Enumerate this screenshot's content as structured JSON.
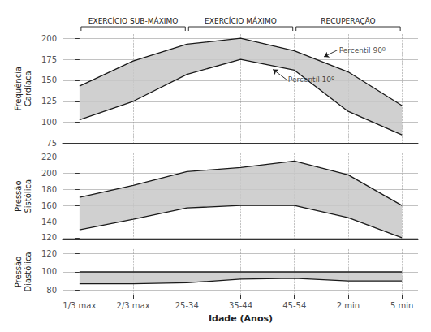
{
  "chart_data": [
    {
      "type": "band",
      "ylabel": "Frequência\nCardíaca",
      "x": [
        0,
        1,
        2,
        3,
        4,
        5,
        6
      ],
      "series": [
        {
          "color": "#1a1a1a",
          "values": [
            143,
            173,
            193,
            200,
            185,
            160,
            120
          ]
        },
        {
          "color": "#1a1a1a",
          "values": [
            103,
            125,
            157,
            175,
            162,
            113,
            85
          ]
        }
      ],
      "color": "#c8c8c8",
      "xlim": [
        -0.3,
        6.3
      ],
      "xticks": [
        0,
        1,
        2,
        3,
        4,
        5,
        6
      ],
      "ylim": [
        75,
        205
      ],
      "yticks": [
        75,
        100,
        125,
        150,
        175,
        200
      ],
      "grid": true,
      "tick_labels": "y",
      "sections": [
        {
          "label": "EXERCÍCIO SUB-MÁXIMO",
          "start": 0,
          "end": 2
        },
        {
          "label": "EXERCÍCIO MÁXIMO",
          "start": 2,
          "end": 4
        },
        {
          "label": "RECUPERAÇÃO",
          "start": 4,
          "end": 6
        }
      ],
      "annotations": [
        {
          "text": "Percentil 90º",
          "x": 4.55,
          "y": 178,
          "text_x": 4.8,
          "text_y": 186
        },
        {
          "text": "Percentíl 10º",
          "x": 3.6,
          "y": 163,
          "text_x": 3.85,
          "text_y": 151
        }
      ]
    },
    {
      "type": "band",
      "ylabel": "Pressão\nSistólica",
      "x": [
        0,
        1,
        2,
        3,
        4,
        5,
        6
      ],
      "series": [
        {
          "color": "#1a1a1a",
          "values": [
            170,
            185,
            202,
            207,
            215,
            198,
            160
          ]
        },
        {
          "color": "#1a1a1a",
          "values": [
            130,
            143,
            157,
            160,
            160,
            145,
            120
          ]
        }
      ],
      "color": "#c8c8c8",
      "xlim": [
        -0.3,
        6.3
      ],
      "xticks": [
        0,
        1,
        2,
        3,
        4,
        5,
        6
      ],
      "ylim": [
        118,
        225
      ],
      "yticks": [
        120,
        140,
        160,
        180,
        200,
        220
      ],
      "grid": true,
      "tick_labels": "y"
    },
    {
      "type": "band",
      "ylabel": "Pressão\nDiastólica",
      "xlabel": "Idade (Anos)",
      "x": [
        0,
        1,
        2,
        3,
        4,
        5,
        6
      ],
      "series": [
        {
          "color": "#1a1a1a",
          "values": [
            100,
            100,
            100,
            100,
            100,
            100,
            100
          ]
        },
        {
          "color": "#1a1a1a",
          "values": [
            87,
            87,
            88,
            92,
            93,
            90,
            90
          ]
        }
      ],
      "color": "#c8c8c8",
      "xlim": [
        -0.3,
        6.3
      ],
      "xticks": [
        {
          "value": 0,
          "label": "1/3 max"
        },
        {
          "value": 1,
          "label": "2/3 max"
        },
        {
          "value": 2,
          "label": "25-34"
        },
        {
          "value": 3,
          "label": "35-44"
        },
        {
          "value": 4,
          "label": "45-54"
        },
        {
          "value": 5,
          "label": "2 min"
        },
        {
          "value": 6,
          "label": "5 min"
        }
      ],
      "ylim": [
        75,
        125
      ],
      "yticks": [
        80,
        100,
        120
      ],
      "grid": true
    }
  ]
}
